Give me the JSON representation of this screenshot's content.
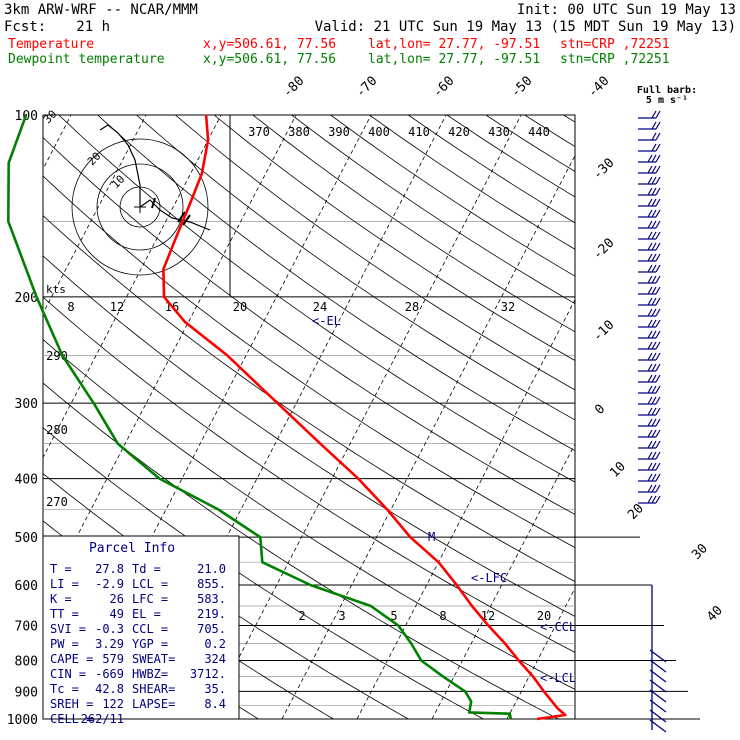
{
  "header": {
    "model": "3km ARW-WRF -- NCAR/MMM",
    "init": "Init: 00 UTC Sun 19 May 13",
    "fcst_label": "Fcst:",
    "fcst_value": "21 h",
    "valid": "Valid: 21 UTC Sun 19 May 13 (15 MDT Sun 19 May 13)",
    "temp_line": {
      "name": "Temperature",
      "xy": "x,y=506.61, 77.56",
      "latlon": "lat,lon= 27.77, -97.51",
      "stn": "stn=CRP ,72251",
      "color": "#ff0000"
    },
    "dew_line": {
      "name": "Dewpoint temperature",
      "xy": "x,y=506.61, 77.56",
      "latlon": "lat,lon= 27.77, -97.51",
      "stn": "stn=CRP ,72251",
      "color": "#008000"
    }
  },
  "barb_legend": {
    "title": "Full barb:",
    "value": "5 m s⁻¹"
  },
  "hodograph": {
    "units": "kts",
    "ring_labels": [
      "8",
      "12",
      "16",
      "20",
      "24",
      "28",
      "32"
    ],
    "small_labels": [
      "10",
      "20",
      "30"
    ]
  },
  "parcel_info": {
    "title": "Parcel Info",
    "rows": [
      [
        "T  =",
        "27.8",
        "Td =",
        "21.0"
      ],
      [
        "LI =",
        "-2.9",
        "LCL =",
        "855."
      ],
      [
        "K  =",
        "26",
        "LFC =",
        "583."
      ],
      [
        "TT =",
        "49",
        "EL  =",
        "219."
      ],
      [
        "SVI =",
        "-0.3",
        "CCL =",
        "705."
      ],
      [
        "PW =",
        "3.29",
        "YGP =",
        "0.2"
      ],
      [
        "CAPE =",
        "579",
        "SWEAT=",
        "324"
      ],
      [
        "CIN =",
        "-669",
        "HWBZ=",
        "3712."
      ],
      [
        "Tc =",
        "42.8",
        "SHEAR=",
        "35."
      ],
      [
        "SREH =",
        "122",
        "LAPSE=",
        "8.4"
      ],
      [
        "CELL =",
        "262/11",
        "",
        ""
      ]
    ]
  },
  "level_markers": {
    "el": "<-EL",
    "lfc": "<-LFC",
    "ccl": "<-CCL",
    "lcl": "<-LCL",
    "m": "M"
  },
  "colors": {
    "temperature": "#ff0000",
    "dewpoint": "#008000",
    "annotation": "#000080",
    "grid": "#000000"
  },
  "chart_data": {
    "type": "line",
    "plot_style": "skew-T log-p thermodynamic diagram",
    "y_axis": "pressure (hPa), log scale, decreasing upward",
    "ylim": [
      1000,
      100
    ],
    "pressure_ticks": [
      100,
      200,
      300,
      400,
      500,
      600,
      700,
      800,
      900,
      1000
    ],
    "isotherm_labels": [
      "-80",
      "-70",
      "-60",
      "-50",
      "-40",
      "-30",
      "-20",
      "-10",
      "0",
      "10",
      "20",
      "30",
      "40"
    ],
    "theta_labels": [
      "370",
      "380",
      "390",
      "400",
      "410",
      "420",
      "430",
      "440"
    ],
    "thetae_labels": [
      "290",
      "280",
      "270"
    ],
    "mixing_ratio_labels": [
      "2",
      "3",
      "5",
      "8",
      "12",
      "20"
    ],
    "series": [
      {
        "name": "Temperature",
        "units": "°C",
        "points": [
          {
            "p": 1000,
            "t": 24.0
          },
          {
            "p": 985,
            "t": 27.5
          },
          {
            "p": 960,
            "t": 26.0
          },
          {
            "p": 900,
            "t": 23.0
          },
          {
            "p": 850,
            "t": 20.5
          },
          {
            "p": 800,
            "t": 17.5
          },
          {
            "p": 750,
            "t": 14.5
          },
          {
            "p": 700,
            "t": 11.0
          },
          {
            "p": 650,
            "t": 7.5
          },
          {
            "p": 600,
            "t": 4.0
          },
          {
            "p": 550,
            "t": 0.0
          },
          {
            "p": 500,
            "t": -5.5
          },
          {
            "p": 450,
            "t": -10.5
          },
          {
            "p": 400,
            "t": -16.5
          },
          {
            "p": 350,
            "t": -24.0
          },
          {
            "p": 300,
            "t": -32.5
          },
          {
            "p": 250,
            "t": -42.5
          },
          {
            "p": 220,
            "t": -50.5
          },
          {
            "p": 200,
            "t": -55.0
          },
          {
            "p": 180,
            "t": -57.0
          },
          {
            "p": 160,
            "t": -57.5
          },
          {
            "p": 140,
            "t": -58.0
          },
          {
            "p": 125,
            "t": -58.5
          },
          {
            "p": 110,
            "t": -60.0
          },
          {
            "p": 100,
            "t": -62.0
          }
        ]
      },
      {
        "name": "Dewpoint temperature",
        "units": "°C",
        "points": [
          {
            "p": 1000,
            "t": 20.5
          },
          {
            "p": 980,
            "t": 20.0
          },
          {
            "p": 975,
            "t": 14.5
          },
          {
            "p": 935,
            "t": 14.0
          },
          {
            "p": 900,
            "t": 12.5
          },
          {
            "p": 850,
            "t": 8.5
          },
          {
            "p": 800,
            "t": 4.5
          },
          {
            "p": 750,
            "t": 2.0
          },
          {
            "p": 700,
            "t": -1.0
          },
          {
            "p": 650,
            "t": -6.0
          },
          {
            "p": 600,
            "t": -15.5
          },
          {
            "p": 550,
            "t": -23.5
          },
          {
            "p": 500,
            "t": -25.5
          },
          {
            "p": 450,
            "t": -33.0
          },
          {
            "p": 400,
            "t": -43.0
          },
          {
            "p": 350,
            "t": -51.0
          },
          {
            "p": 300,
            "t": -57.0
          },
          {
            "p": 250,
            "t": -64.5
          },
          {
            "p": 200,
            "t": -72.0
          },
          {
            "p": 150,
            "t": -81.0
          },
          {
            "p": 120,
            "t": -85.0
          },
          {
            "p": 100,
            "t": -86.0
          }
        ]
      }
    ]
  }
}
